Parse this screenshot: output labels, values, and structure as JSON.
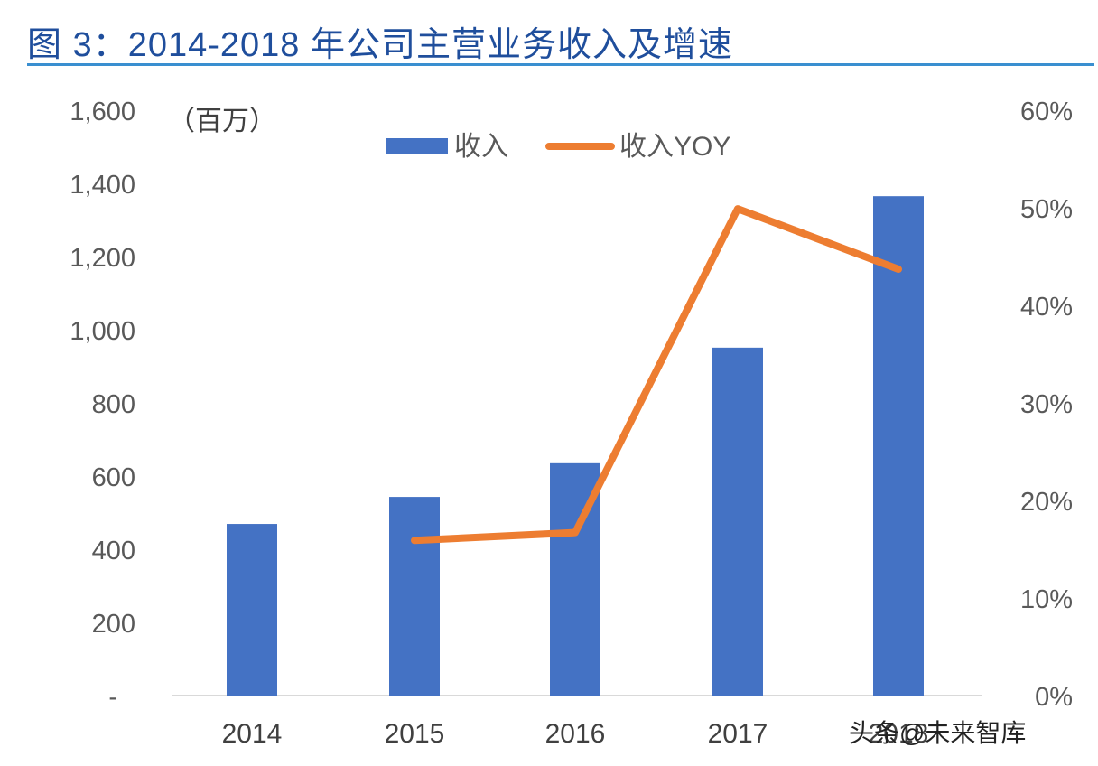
{
  "header": {
    "title": "图 3：2014-2018 年公司主营业务收入及增速"
  },
  "watermark": "头条@未来智库",
  "colors": {
    "bar": "#4472c4",
    "line": "#ed7d31",
    "title": "#1f4e9c",
    "rule": "#3a8fd0",
    "axis": "#d9d9d9",
    "tick_text": "#595959"
  },
  "chart_data": {
    "type": "bar+line",
    "title": "图 3：2014-2018 年公司主营业务收入及增速",
    "unit_label": "（百万）",
    "categories": [
      "2014",
      "2015",
      "2016",
      "2017",
      "2018"
    ],
    "series": [
      {
        "name": "收入",
        "type": "bar",
        "axis": "left",
        "values": [
          469,
          543,
          635,
          951,
          1365
        ]
      },
      {
        "name": "收入YOY",
        "type": "line",
        "axis": "right",
        "values": [
          null,
          15.9,
          16.7,
          49.9,
          43.7
        ]
      }
    ],
    "left_axis": {
      "ylim": [
        0,
        1600
      ],
      "ticks": [
        "-",
        "200",
        "400",
        "600",
        "800",
        "1,000",
        "1,200",
        "1,400",
        "1,600"
      ]
    },
    "right_axis": {
      "ylim": [
        0,
        60
      ],
      "ticks": [
        "0%",
        "10%",
        "20%",
        "30%",
        "40%",
        "50%",
        "60%"
      ]
    },
    "legend": {
      "position": "top-center",
      "entries": [
        "收入",
        "收入YOY"
      ]
    },
    "grid": false
  }
}
